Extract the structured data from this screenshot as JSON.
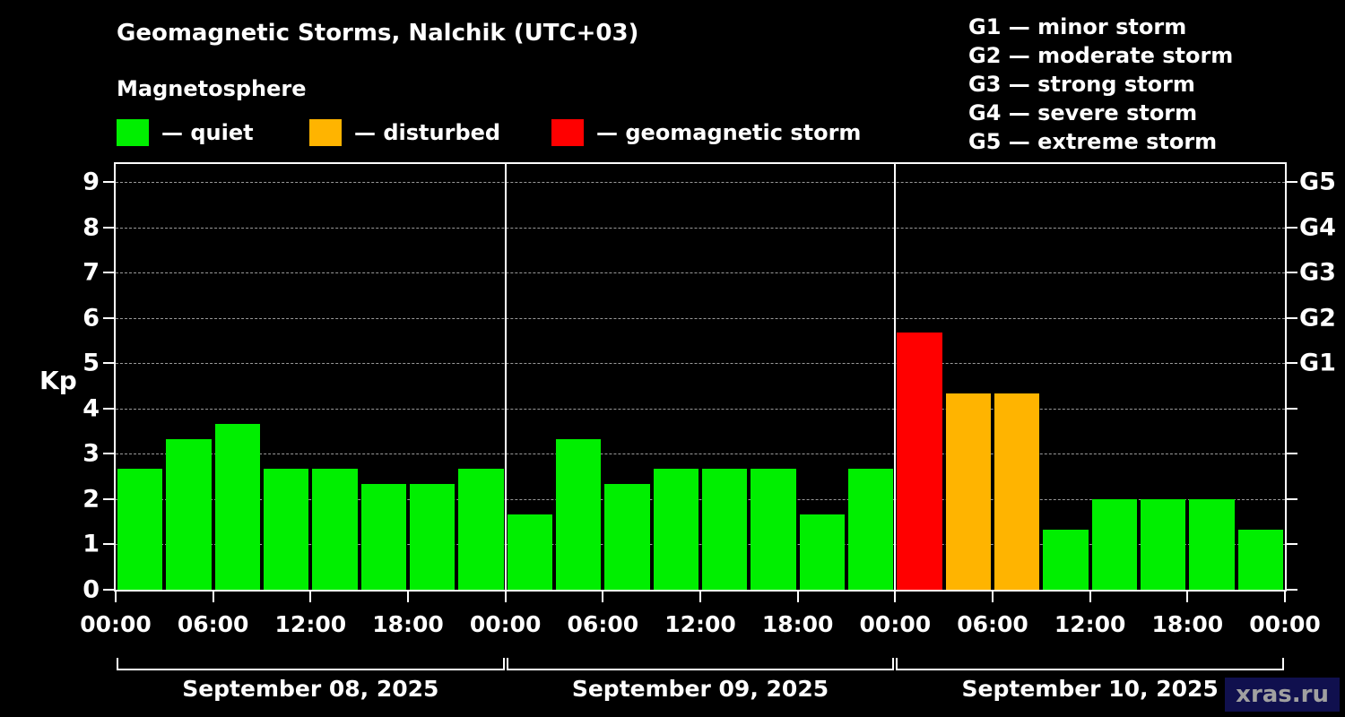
{
  "header": {
    "title": "Geomagnetic Storms, Nalchik (UTC+03)",
    "subtitle": "Magnetosphere"
  },
  "legend": {
    "items": [
      {
        "key": "quiet",
        "label": "— quiet"
      },
      {
        "key": "disturbed",
        "label": "— disturbed"
      },
      {
        "key": "storm",
        "label": "— geomagnetic storm"
      }
    ]
  },
  "g_legend": {
    "lines": [
      "G1 — minor storm",
      "G2 — moderate storm",
      "G3 — strong storm",
      "G4 — severe storm",
      "G5 — extreme storm"
    ]
  },
  "watermark": "xras.ru",
  "chart_data": {
    "type": "bar",
    "title": "Geomagnetic Storms, Nalchik (UTC+03)",
    "ylabel": "Kp",
    "ylim": [
      0,
      9.4
    ],
    "yticks": [
      0,
      1,
      2,
      3,
      4,
      5,
      6,
      7,
      8,
      9
    ],
    "grid": "horizontal-dashed",
    "legend_position": "top",
    "right_axis": [
      {
        "value": 5,
        "label": "G1"
      },
      {
        "value": 6,
        "label": "G2"
      },
      {
        "value": 7,
        "label": "G3"
      },
      {
        "value": 8,
        "label": "G4"
      },
      {
        "value": 9,
        "label": "G5"
      }
    ],
    "x_interval_hours": 3,
    "x_tick_labels": [
      "00:00",
      "06:00",
      "12:00",
      "18:00",
      "00:00",
      "06:00",
      "12:00",
      "18:00",
      "00:00",
      "06:00",
      "12:00",
      "18:00",
      "00:00"
    ],
    "status_colors": {
      "quiet": "#00ef00",
      "disturbed": "#ffb400",
      "storm": "#ff0000"
    },
    "days": [
      {
        "date": "September 08, 2025",
        "kp": [
          2.67,
          3.33,
          3.67,
          2.67,
          2.67,
          2.33,
          2.33,
          2.67
        ],
        "levels": [
          "quiet",
          "quiet",
          "quiet",
          "quiet",
          "quiet",
          "quiet",
          "quiet",
          "quiet"
        ]
      },
      {
        "date": "September 09, 2025",
        "kp": [
          1.67,
          3.33,
          2.33,
          2.67,
          2.67,
          2.67,
          1.67,
          2.67
        ],
        "levels": [
          "quiet",
          "quiet",
          "quiet",
          "quiet",
          "quiet",
          "quiet",
          "quiet",
          "quiet"
        ]
      },
      {
        "date": "September 10, 2025",
        "kp": [
          5.67,
          4.33,
          4.33,
          1.33,
          2.0,
          2.0,
          2.0,
          1.33
        ],
        "levels": [
          "storm",
          "disturbed",
          "disturbed",
          "quiet",
          "quiet",
          "quiet",
          "quiet",
          "quiet"
        ]
      }
    ]
  }
}
